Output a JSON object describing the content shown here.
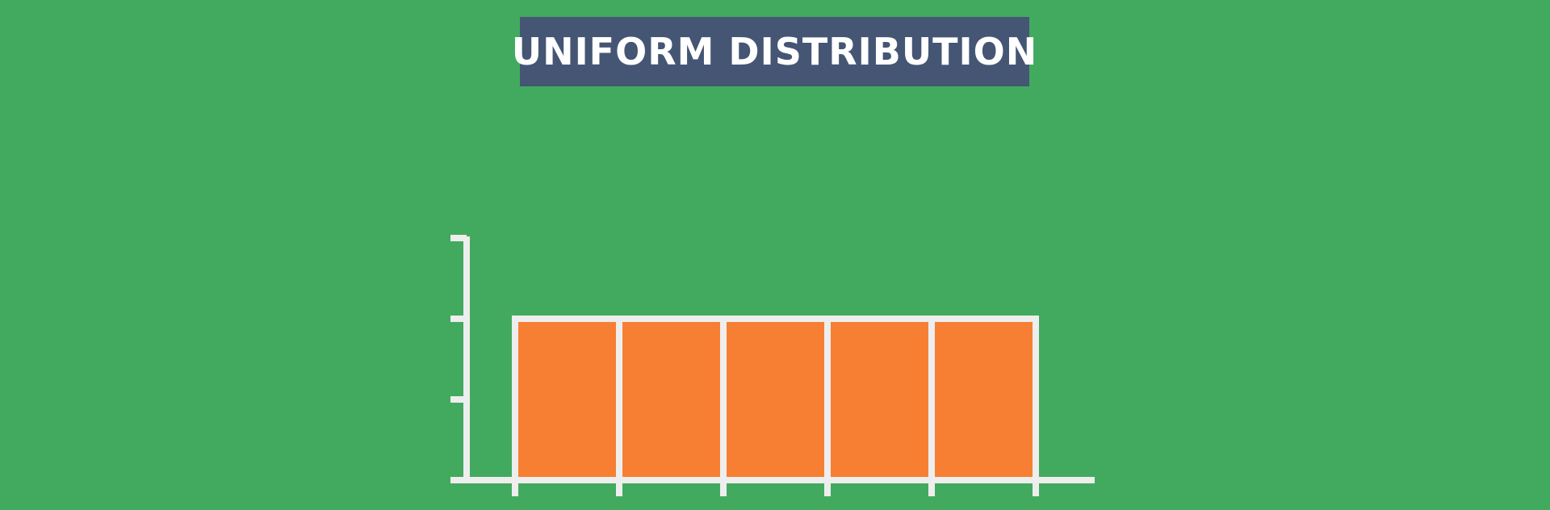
{
  "colors": {
    "background": "#42AA5E",
    "banner": "#455574",
    "bar_fill": "#F77F33",
    "axis": "#EEEEEE"
  },
  "chart_data": {
    "type": "bar",
    "title": "UNIFORM DISTRIBUTION",
    "categories": [
      "",
      "",
      "",
      "",
      ""
    ],
    "values": [
      2,
      2,
      2,
      2,
      2
    ],
    "ylim": [
      0,
      3
    ],
    "yticks": [
      0,
      1,
      2,
      3
    ],
    "xlabel": "",
    "ylabel": "",
    "grid": false,
    "legend": "none"
  }
}
